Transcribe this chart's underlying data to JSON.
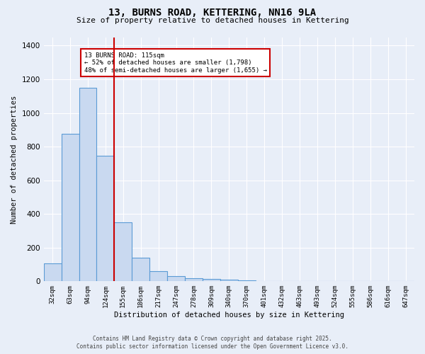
{
  "title": "13, BURNS ROAD, KETTERING, NN16 9LA",
  "subtitle": "Size of property relative to detached houses in Kettering",
  "xlabel": "Distribution of detached houses by size in Kettering",
  "ylabel": "Number of detached properties",
  "bar_labels": [
    "32sqm",
    "63sqm",
    "94sqm",
    "124sqm",
    "155sqm",
    "186sqm",
    "217sqm",
    "247sqm",
    "278sqm",
    "309sqm",
    "340sqm",
    "370sqm",
    "401sqm",
    "432sqm",
    "463sqm",
    "493sqm",
    "524sqm",
    "555sqm",
    "586sqm",
    "616sqm",
    "647sqm"
  ],
  "bar_values": [
    105,
    875,
    1150,
    745,
    350,
    140,
    60,
    30,
    20,
    15,
    10,
    5,
    0,
    0,
    0,
    0,
    0,
    0,
    0,
    0,
    0
  ],
  "bar_color": "#c9d9f0",
  "bar_edge_color": "#5b9bd5",
  "bar_edge_width": 0.8,
  "red_line_bin": 3,
  "annotation_text": "13 BURNS ROAD: 115sqm\n← 52% of detached houses are smaller (1,798)\n48% of semi-detached houses are larger (1,655) →",
  "annotation_box_color": "#ffffff",
  "annotation_box_edge_color": "#cc0000",
  "red_line_color": "#cc0000",
  "ylim": [
    0,
    1450
  ],
  "yticks": [
    0,
    200,
    400,
    600,
    800,
    1000,
    1200,
    1400
  ],
  "background_color": "#e8eef8",
  "grid_color": "#ffffff",
  "footer_line1": "Contains HM Land Registry data © Crown copyright and database right 2025.",
  "footer_line2": "Contains public sector information licensed under the Open Government Licence v3.0."
}
